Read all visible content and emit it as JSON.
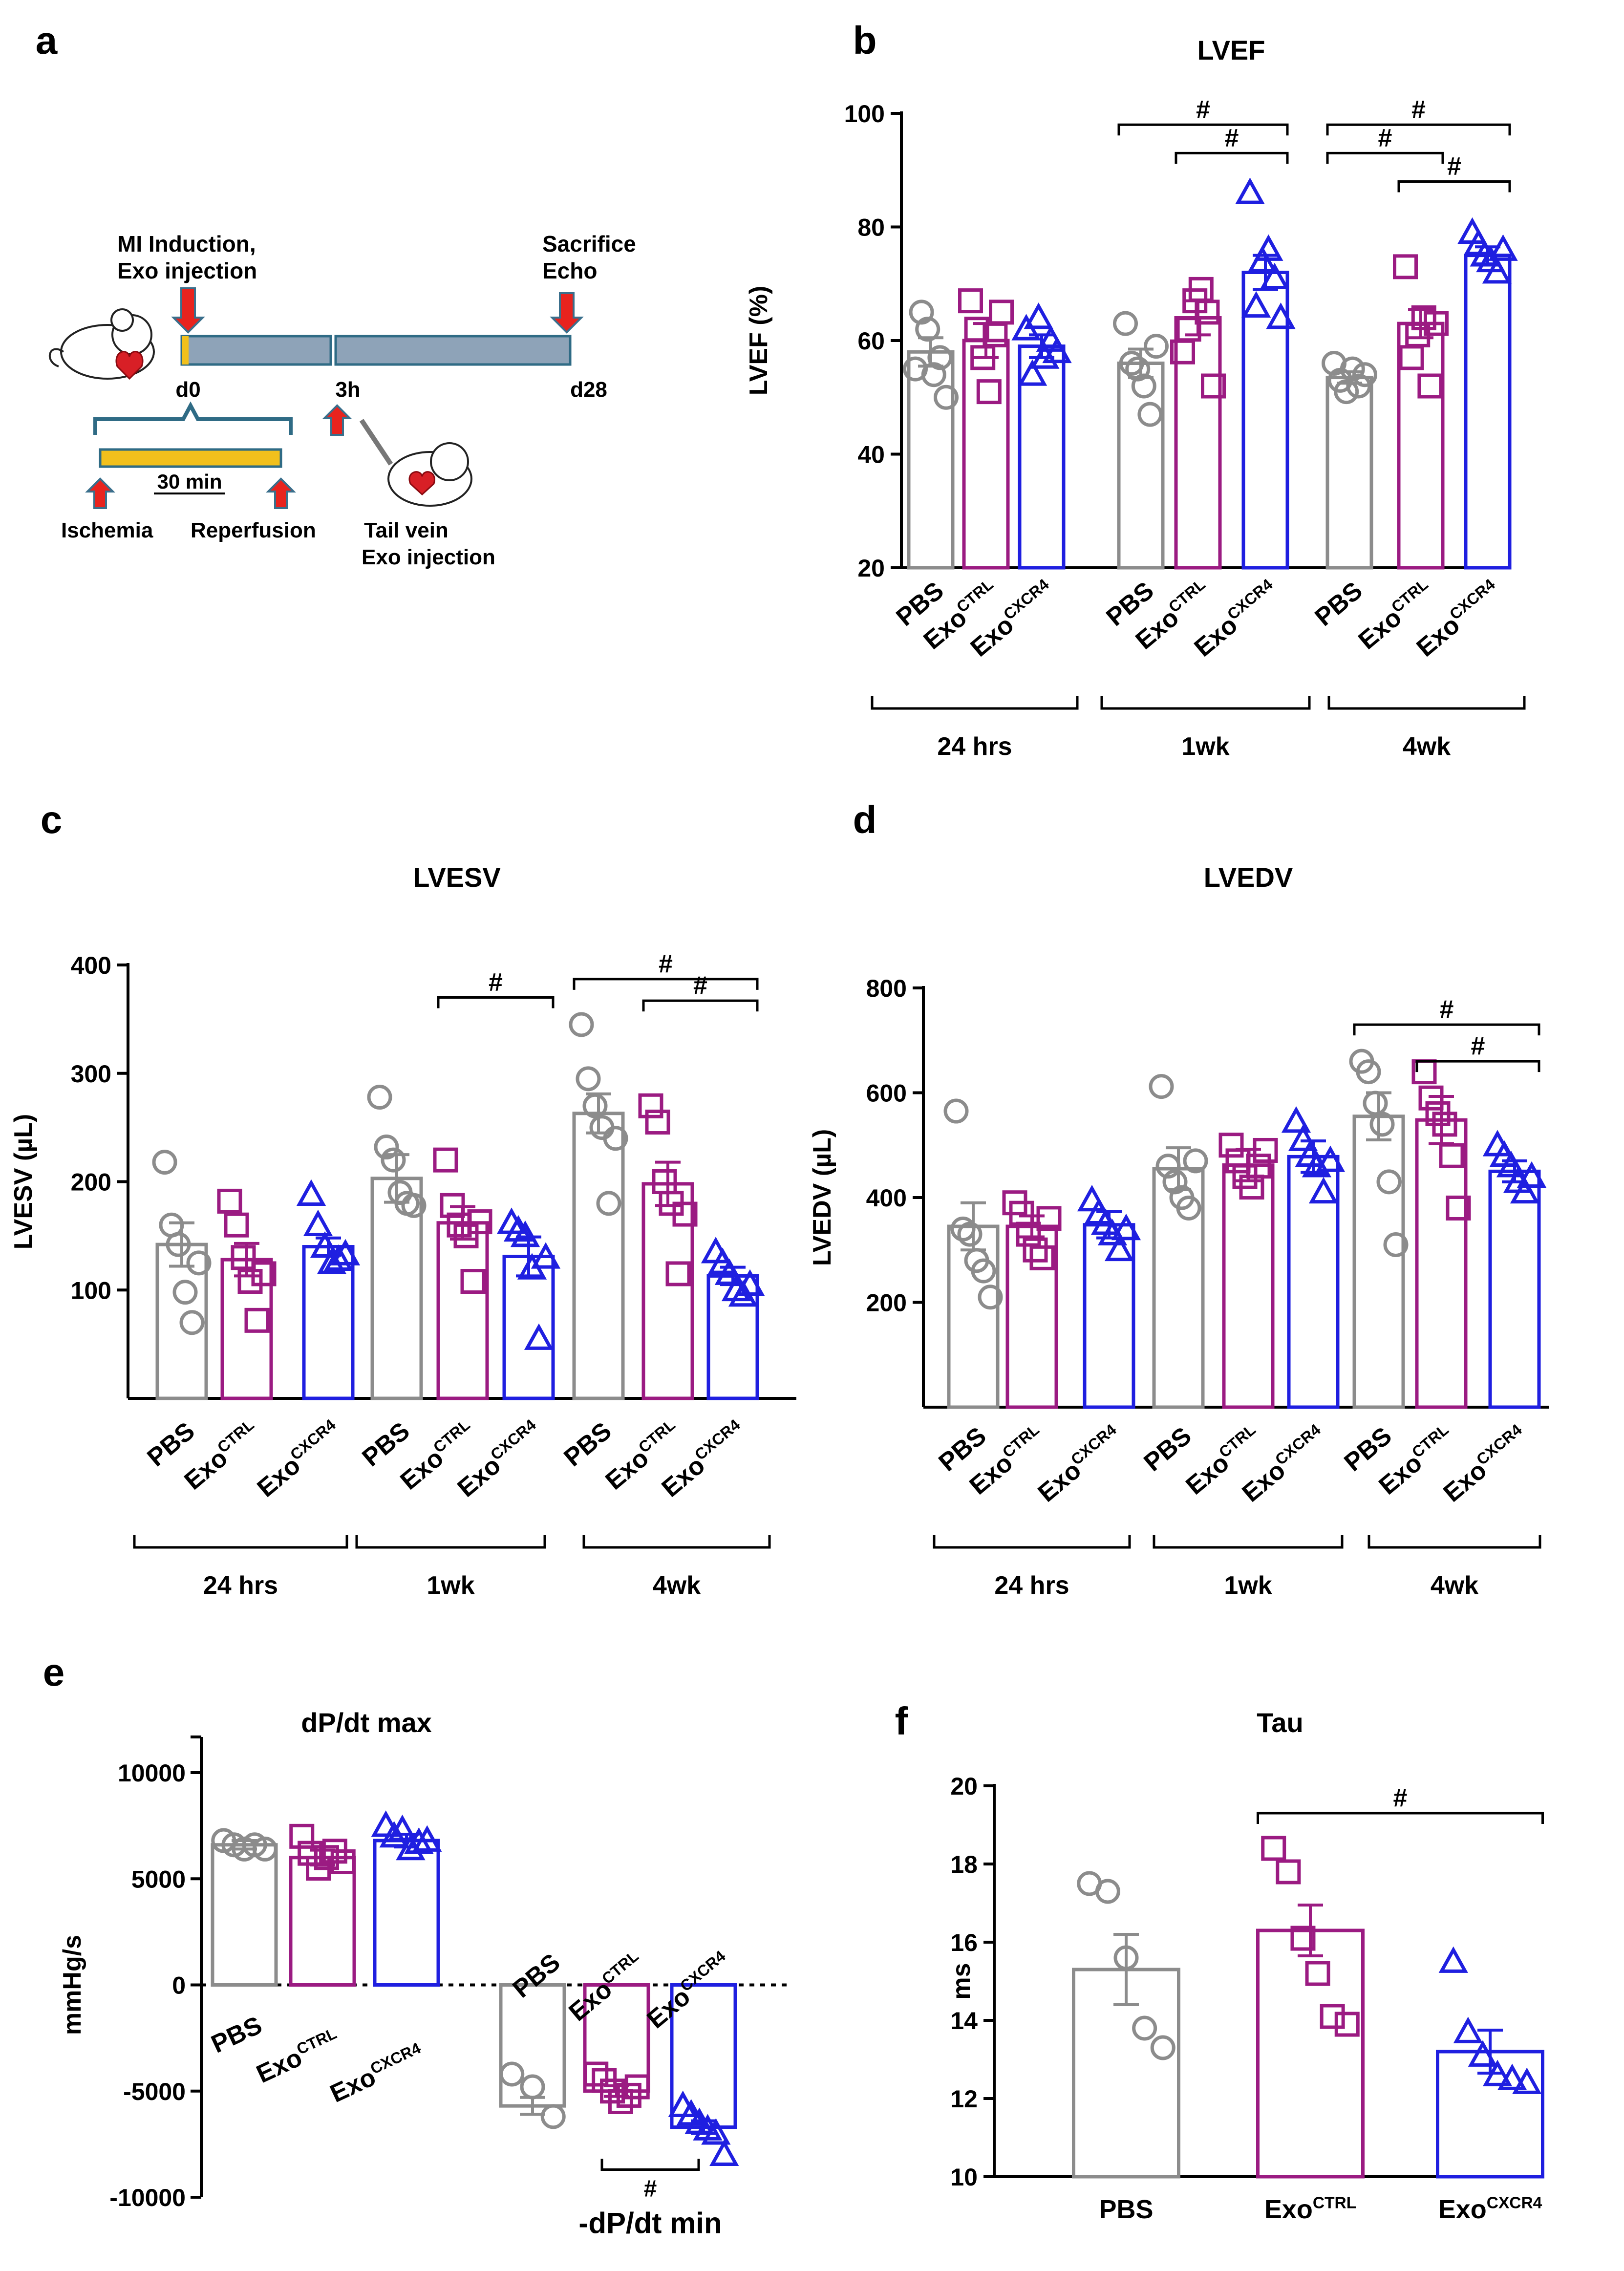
{
  "panel_labels": {
    "a": "a",
    "b": "b",
    "c": "c",
    "d": "d",
    "e": "e",
    "f": "f"
  },
  "colors": {
    "PBS": "#8c8c8c",
    "ExoCTRL": "#9b1b82",
    "ExoCXCR4": "#1f1fe0",
    "timeline_bar": "#8ea3b8",
    "ischemia_bar": "#f2c01c",
    "timeline_text": "#1f5f7a",
    "arrow": "#e8231e",
    "arrow_outline": "#3a6f8c"
  },
  "groups": {
    "pbs": "PBS",
    "exo": "Exo",
    "ctrl_sup": "CTRL",
    "cxcr4_sup": "CXCR4"
  },
  "timepoints": [
    "24 hrs",
    "1wk",
    "4wk"
  ],
  "schematic": {
    "mi_label_1": "MI Induction,",
    "mi_label_2": "Exo injection",
    "sacrifice_label": "Sacrifice",
    "echo_label": "Echo",
    "d0": "d0",
    "h3": "3h",
    "d28": "d28",
    "duration": "30 min",
    "ischemia": "Ischemia",
    "reperfusion": "Reperfusion",
    "tail_vein_1": "Tail vein",
    "tail_vein_2": "Exo injection"
  },
  "sig_symbol": "#",
  "chart_data": [
    {
      "id": "b",
      "type": "bar",
      "title": "LVEF",
      "ylabel": "LVEF (%)",
      "ylim": [
        20,
        100
      ],
      "yticks": [
        20,
        40,
        60,
        80,
        100
      ],
      "categories": [
        "PBS",
        "ExoCTRL",
        "ExoCXCR4",
        "PBS",
        "ExoCTRL",
        "ExoCXCR4",
        "PBS",
        "ExoCTRL",
        "ExoCXCR4"
      ],
      "timepoint_of_category": [
        0,
        0,
        0,
        1,
        1,
        1,
        2,
        2,
        2
      ],
      "values": [
        58,
        60,
        59,
        56,
        64,
        72,
        53.5,
        63,
        75
      ],
      "sem": [
        2.5,
        3,
        2,
        2.5,
        3,
        3,
        1,
        2.5,
        1.5
      ],
      "points": [
        [
          55,
          65,
          62,
          54,
          57,
          50
        ],
        [
          67,
          62,
          57,
          51,
          61,
          65
        ],
        [
          62,
          54,
          64,
          57,
          60,
          58
        ],
        [
          63,
          56,
          55,
          52,
          47,
          59
        ],
        [
          58,
          62,
          67,
          69,
          65,
          52
        ],
        [
          86,
          66,
          74,
          76,
          71,
          64
        ],
        [
          56,
          53,
          51,
          55,
          52,
          54
        ],
        [
          73,
          57,
          61,
          64,
          52,
          63
        ],
        [
          79,
          77,
          75,
          74,
          72,
          76
        ]
      ],
      "comparisons": [
        [
          3,
          5,
          98
        ],
        [
          4,
          5,
          93
        ],
        [
          6,
          8,
          98
        ],
        [
          6,
          7,
          93
        ],
        [
          7,
          8,
          88
        ]
      ]
    },
    {
      "id": "c",
      "type": "bar",
      "title": "LVESV",
      "ylabel": "LVESV (µL)",
      "ylim": [
        0,
        400
      ],
      "yticks": [
        100,
        200,
        300,
        400
      ],
      "categories": [
        "PBS",
        "ExoCTRL",
        "ExoCXCR4",
        "PBS",
        "ExoCTRL",
        "ExoCXCR4",
        "PBS",
        "ExoCTRL",
        "ExoCXCR4"
      ],
      "timepoint_of_category": [
        0,
        0,
        0,
        1,
        1,
        1,
        2,
        2,
        2
      ],
      "values": [
        142,
        128,
        140,
        203,
        162,
        131,
        263,
        198,
        113
      ],
      "sem": [
        20,
        15,
        8,
        22,
        15,
        18,
        18,
        20,
        8
      ],
      "points": [
        [
          218,
          160,
          142,
          98,
          70,
          125
        ],
        [
          182,
          160,
          130,
          108,
          72,
          115
        ],
        [
          188,
          160,
          140,
          125,
          128,
          133
        ],
        [
          278,
          232,
          220,
          190,
          180,
          178
        ],
        [
          220,
          178,
          160,
          150,
          108,
          163
        ],
        [
          162,
          155,
          150,
          120,
          55,
          130
        ],
        [
          345,
          295,
          270,
          250,
          180,
          240
        ],
        [
          270,
          255,
          200,
          180,
          115,
          170
        ],
        [
          135,
          125,
          115,
          100,
          95,
          105
        ]
      ],
      "comparisons": [
        [
          4,
          5,
          370
        ],
        [
          6,
          8,
          387
        ],
        [
          7,
          8,
          367
        ]
      ]
    },
    {
      "id": "d",
      "type": "bar",
      "title": "LVEDV",
      "ylabel": "LVEDV (µL)",
      "ylim": [
        0,
        800
      ],
      "yticks": [
        200,
        400,
        600,
        800
      ],
      "categories": [
        "PBS",
        "ExoCTRL",
        "ExoCXCR4",
        "PBS",
        "ExoCTRL",
        "ExoCXCR4",
        "PBS",
        "ExoCTRL",
        "ExoCXCR4"
      ],
      "timepoint_of_category": [
        0,
        0,
        0,
        1,
        1,
        1,
        2,
        2,
        2
      ],
      "values": [
        345,
        345,
        348,
        455,
        462,
        478,
        555,
        548,
        450
      ],
      "sem": [
        45,
        20,
        25,
        40,
        30,
        30,
        45,
        45,
        20
      ],
      "points": [
        [
          565,
          340,
          330,
          280,
          260,
          210
        ],
        [
          390,
          370,
          330,
          300,
          285,
          360
        ],
        [
          395,
          370,
          350,
          330,
          300,
          340
        ],
        [
          612,
          460,
          430,
          400,
          380,
          470
        ],
        [
          500,
          470,
          440,
          420,
          460,
          490
        ],
        [
          545,
          510,
          480,
          460,
          410,
          470
        ],
        [
          660,
          640,
          580,
          540,
          430,
          310
        ],
        [
          640,
          590,
          560,
          540,
          480,
          380
        ],
        [
          500,
          480,
          460,
          430,
          410,
          440
        ]
      ],
      "comparisons": [
        [
          6,
          8,
          730
        ],
        [
          7,
          8,
          660
        ]
      ]
    },
    {
      "id": "e",
      "type": "bar",
      "title": "dP/dt max",
      "ylabel": "mmHg/s",
      "ylim": [
        -10000,
        10000
      ],
      "yticks": [
        -10000,
        -5000,
        0,
        5000,
        10000
      ],
      "categories": [
        "PBS",
        "ExoCTRL",
        "ExoCXCR4",
        "PBS",
        "ExoCTRL",
        "ExoCXCR4"
      ],
      "values": [
        6600,
        6000,
        6800,
        -5700,
        -5000,
        -6700
      ],
      "sem": [
        200,
        350,
        300,
        400,
        250,
        300
      ],
      "points": [
        [
          6800,
          6600,
          6400,
          6600,
          6400
        ],
        [
          7000,
          6200,
          5500,
          6000,
          6300,
          5800
        ],
        [
          7500,
          7000,
          7300,
          6400,
          6700,
          6800
        ],
        [
          -4200,
          -4800,
          -6200
        ],
        [
          -4200,
          -4500,
          -5000,
          -5500,
          -5200,
          -4800
        ],
        [
          -5700,
          -6100,
          -6500,
          -6800,
          -7000,
          -8000
        ]
      ],
      "comparisons": [
        [
          4,
          5,
          -8700
        ]
      ],
      "min_label": "-dP/dt min"
    },
    {
      "id": "f",
      "type": "bar",
      "title": "Tau",
      "ylabel": "ms",
      "ylim": [
        10,
        20
      ],
      "yticks": [
        10,
        12,
        14,
        16,
        18,
        20
      ],
      "categories": [
        "PBS",
        "ExoCTRL",
        "ExoCXCR4"
      ],
      "values": [
        15.3,
        16.3,
        13.2
      ],
      "sem": [
        0.9,
        0.65,
        0.55
      ],
      "points": [
        [
          17.5,
          17.3,
          15.6,
          13.8,
          13.3
        ],
        [
          18.4,
          17.8,
          16.1,
          15.2,
          14.1,
          13.9
        ],
        [
          15.5,
          13.7,
          13.1,
          12.6,
          12.5,
          12.4
        ]
      ],
      "comparisons": [
        [
          1,
          2,
          19.3
        ]
      ]
    }
  ]
}
